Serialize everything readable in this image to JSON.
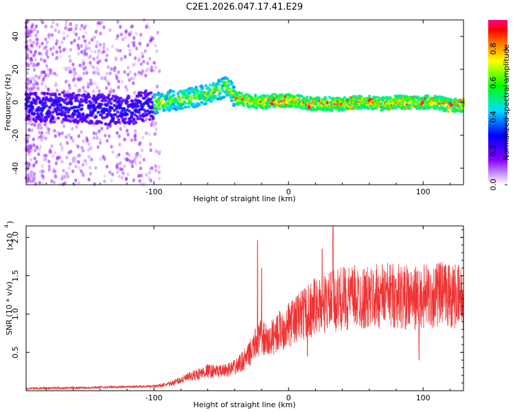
{
  "title": "C2E1.2026.047.17.41.E29",
  "chart_data": [
    {
      "type": "heatmap",
      "name": "spectrogram",
      "xlabel": "Height of straight line (km)",
      "ylabel": "Frequency (Hz)",
      "xlim": [
        -195,
        130
      ],
      "ylim": [
        -50,
        50
      ],
      "x_ticks": [
        -100,
        0,
        100
      ],
      "y_ticks": [
        -40,
        -20,
        0,
        20,
        40
      ],
      "ridge_x": [
        -185,
        -170,
        -160,
        -150,
        -140,
        -130,
        -120,
        -110,
        -100,
        -90,
        -80,
        -70,
        -60,
        -50,
        -45,
        -40,
        -30,
        -20,
        -10,
        0,
        10,
        20,
        30,
        40,
        50,
        60,
        70,
        80,
        90,
        100,
        110,
        120,
        130
      ],
      "ridge_y": [
        -3,
        -3,
        -3,
        -4,
        -4,
        -5,
        -5,
        -3,
        -1,
        1,
        2,
        3,
        5,
        8,
        10,
        3,
        1,
        0,
        1,
        1,
        0,
        -1,
        -1,
        -1,
        0,
        0,
        -1,
        0,
        0,
        0,
        0,
        -2,
        -2
      ],
      "colorbar": {
        "label": "Normalized spectral amplitude",
        "ticks": [
          "0.0",
          "0.2",
          "0.4",
          "0.6",
          "0.8"
        ],
        "range": [
          0,
          0.97
        ]
      }
    },
    {
      "type": "line",
      "name": "snr",
      "xlabel": "Height of straight line (km)",
      "ylabel": "SNR (10 * v/v)",
      "scale_note": "(x10",
      "scale_exp": "4",
      "xlim": [
        -195,
        130
      ],
      "ylim": [
        0,
        2.15
      ],
      "x_ticks": [
        -100,
        0,
        100
      ],
      "y_ticks": [
        0.5,
        1.0,
        1.5,
        2.0
      ],
      "y_tick_labels": [
        "0.5",
        "1.0",
        "1.5",
        "2.0"
      ],
      "color": "#ee3333",
      "envelope_x": [
        -195,
        -150,
        -100,
        -90,
        -80,
        -70,
        -60,
        -50,
        -40,
        -30,
        -25,
        -20,
        -15,
        -10,
        0,
        10,
        20,
        30,
        40,
        50,
        60,
        70,
        80,
        90,
        100,
        110,
        120,
        130
      ],
      "envelope_y": [
        0.03,
        0.04,
        0.06,
        0.08,
        0.14,
        0.2,
        0.26,
        0.25,
        0.3,
        0.45,
        0.6,
        0.7,
        0.62,
        0.75,
        0.85,
        1.0,
        1.1,
        1.15,
        1.2,
        1.22,
        1.2,
        1.25,
        1.25,
        1.2,
        1.22,
        1.25,
        1.25,
        1.2
      ],
      "spikes": [
        {
          "x": -23,
          "y": 1.96
        },
        {
          "x": -20,
          "y": 1.6
        },
        {
          "x": 33,
          "y": 2.15
        },
        {
          "x": 25,
          "y": 1.85
        },
        {
          "x": 97,
          "y": 0.4
        },
        {
          "x": 14,
          "y": 0.45
        }
      ]
    }
  ]
}
